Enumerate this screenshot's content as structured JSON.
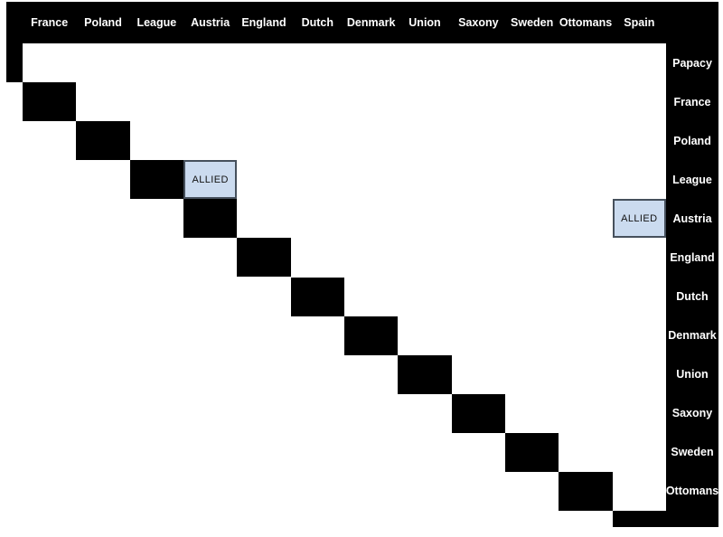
{
  "matrix": {
    "column_headers": [
      "France",
      "Poland",
      "League",
      "Austria",
      "England",
      "Dutch",
      "Denmark",
      "Union",
      "Saxony",
      "Sweden",
      "Ottomans",
      "Spain"
    ],
    "row_headers": [
      "Papacy",
      "France",
      "Poland",
      "League",
      "Austria",
      "England",
      "Dutch",
      "Denmark",
      "Union",
      "Saxony",
      "Sweden",
      "Ottomans"
    ],
    "relations": [
      {
        "row": "League",
        "col": "Austria",
        "status": "ALLIED"
      },
      {
        "row": "Austria",
        "col": "Spain",
        "status": "ALLIED"
      }
    ],
    "colors": {
      "bar_background": "#000000",
      "bar_text": "#ffffff",
      "blocked_cell": "#000000",
      "allied_fill": "#cbdbef",
      "allied_border": "#46505c",
      "allied_text": "#111111",
      "page_background": "#ffffff"
    }
  }
}
